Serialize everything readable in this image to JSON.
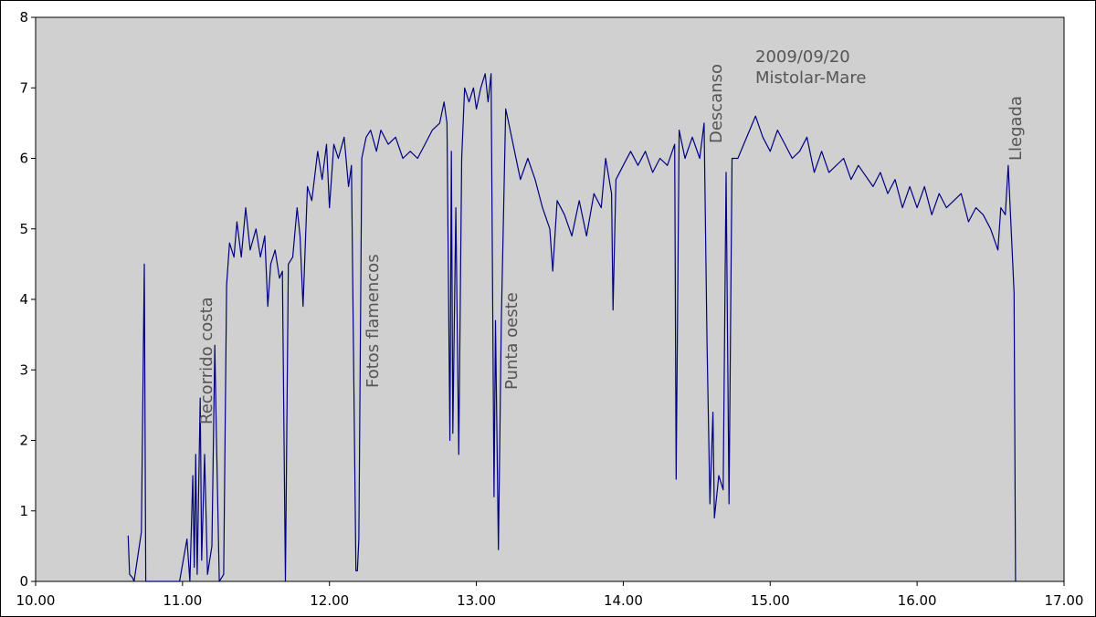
{
  "chart_data": {
    "type": "line",
    "x": [
      10.63,
      10.64,
      10.66,
      10.67,
      10.72,
      10.74,
      10.75,
      10.85,
      10.98,
      11.03,
      11.05,
      11.07,
      11.08,
      11.09,
      11.1,
      11.12,
      11.13,
      11.15,
      11.17,
      11.2,
      11.22,
      11.23,
      11.25,
      11.28,
      11.3,
      11.32,
      11.35,
      11.37,
      11.4,
      11.43,
      11.46,
      11.5,
      11.53,
      11.56,
      11.58,
      11.6,
      11.63,
      11.66,
      11.68,
      11.7,
      11.72,
      11.75,
      11.78,
      11.8,
      11.82,
      11.85,
      11.88,
      11.92,
      11.95,
      11.98,
      12.0,
      12.03,
      12.06,
      12.1,
      12.13,
      12.15,
      12.18,
      12.19,
      12.2,
      12.22,
      12.25,
      12.28,
      12.32,
      12.35,
      12.4,
      12.45,
      12.5,
      12.55,
      12.6,
      12.65,
      12.7,
      12.75,
      12.78,
      12.8,
      12.82,
      12.83,
      12.84,
      12.86,
      12.88,
      12.9,
      12.92,
      12.95,
      12.98,
      13.0,
      13.03,
      13.06,
      13.08,
      13.1,
      13.12,
      13.13,
      13.15,
      13.17,
      13.2,
      13.22,
      13.25,
      13.3,
      13.35,
      13.4,
      13.45,
      13.5,
      13.52,
      13.55,
      13.6,
      13.65,
      13.7,
      13.75,
      13.8,
      13.85,
      13.88,
      13.92,
      13.93,
      13.95,
      14.0,
      14.05,
      14.1,
      14.15,
      14.2,
      14.25,
      14.3,
      14.35,
      14.36,
      14.38,
      14.42,
      14.47,
      14.52,
      14.55,
      14.57,
      14.59,
      14.61,
      14.62,
      14.65,
      14.68,
      14.7,
      14.72,
      14.74,
      14.78,
      14.82,
      14.86,
      14.9,
      14.95,
      15.0,
      15.05,
      15.1,
      15.15,
      15.2,
      15.25,
      15.3,
      15.35,
      15.4,
      15.5,
      15.55,
      15.6,
      15.7,
      15.75,
      15.8,
      15.85,
      15.9,
      15.95,
      16.0,
      16.05,
      16.1,
      16.15,
      16.2,
      16.3,
      16.35,
      16.4,
      16.45,
      16.5,
      16.55,
      16.57,
      16.6,
      16.62,
      16.64,
      16.66,
      16.67
    ],
    "series": [
      {
        "color": "#000080",
        "values": [
          0.65,
          0.1,
          0.05,
          0,
          0.7,
          4.5,
          0,
          0,
          0,
          0.6,
          0,
          1.5,
          0.2,
          1.8,
          0.1,
          2.6,
          0.3,
          1.8,
          0.1,
          0.5,
          3.35,
          2.1,
          0,
          0.1,
          4.2,
          4.8,
          4.6,
          5.1,
          4.6,
          5.3,
          4.7,
          5.0,
          4.6,
          4.9,
          3.9,
          4.5,
          4.7,
          4.3,
          4.4,
          0,
          4.5,
          4.6,
          5.3,
          4.9,
          3.9,
          5.6,
          5.4,
          6.1,
          5.7,
          6.2,
          5.3,
          6.2,
          6.0,
          6.3,
          5.6,
          5.9,
          0.15,
          0.15,
          0.6,
          6.0,
          6.3,
          6.4,
          6.1,
          6.4,
          6.2,
          6.3,
          6.0,
          6.1,
          6.0,
          6.2,
          6.4,
          6.5,
          6.8,
          6.5,
          2.0,
          6.1,
          2.1,
          5.3,
          1.8,
          6.0,
          7.0,
          6.8,
          7.0,
          6.7,
          7.0,
          7.2,
          6.8,
          7.2,
          1.2,
          3.7,
          0.45,
          3.7,
          6.7,
          6.5,
          6.2,
          5.7,
          6.0,
          5.7,
          5.3,
          5.0,
          4.4,
          5.4,
          5.2,
          4.9,
          5.4,
          4.9,
          5.5,
          5.3,
          6.0,
          5.5,
          3.85,
          5.7,
          5.9,
          6.1,
          5.9,
          6.1,
          5.8,
          6.0,
          5.9,
          6.2,
          1.45,
          6.4,
          6.0,
          6.3,
          6.0,
          6.5,
          3.4,
          1.1,
          2.4,
          0.9,
          1.5,
          1.3,
          5.8,
          1.1,
          6.0,
          6.0,
          6.2,
          6.4,
          6.6,
          6.3,
          6.1,
          6.4,
          6.2,
          6.0,
          6.1,
          6.3,
          5.8,
          6.1,
          5.8,
          6.0,
          5.7,
          5.9,
          5.6,
          5.8,
          5.5,
          5.7,
          5.3,
          5.6,
          5.3,
          5.6,
          5.2,
          5.5,
          5.3,
          5.5,
          5.1,
          5.3,
          5.2,
          5.0,
          4.7,
          5.3,
          5.2,
          5.9,
          5.0,
          4.1,
          0
        ]
      }
    ],
    "xlim": [
      10,
      17
    ],
    "ylim": [
      0,
      8
    ],
    "xticks": [
      {
        "value": 10,
        "label": "10.00"
      },
      {
        "value": 11,
        "label": "11.00"
      },
      {
        "value": 12,
        "label": "12.00"
      },
      {
        "value": 13,
        "label": "13.00"
      },
      {
        "value": 14,
        "label": "14.00"
      },
      {
        "value": 15,
        "label": "15.00"
      },
      {
        "value": 16,
        "label": "16.00"
      },
      {
        "value": 17,
        "label": "17.00"
      }
    ],
    "yticks": [
      0,
      1,
      2,
      3,
      4,
      5,
      6,
      7,
      8
    ],
    "annotations": [
      "Recorrido costa",
      "Fotos flamencos",
      "Punta oeste",
      "Descanso",
      "2009/09/20",
      "Mistolar-Mare",
      "Llegada"
    ]
  }
}
